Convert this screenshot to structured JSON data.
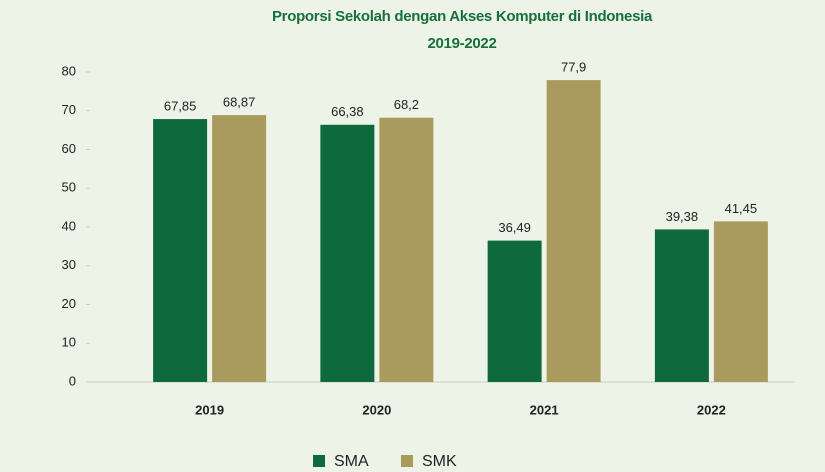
{
  "chart_data": {
    "type": "bar",
    "title": "Proporsi Sekolah dengan Akses Komputer di Indonesia",
    "subtitle": "2019-2022",
    "categories": [
      "2019",
      "2020",
      "2021",
      "2022"
    ],
    "series": [
      {
        "name": "SMA",
        "color": "#0e6a3c",
        "values": [
          67.85,
          66.38,
          36.49,
          39.38
        ],
        "value_labels": [
          "67,85",
          "66,38",
          "36,49",
          "39,38"
        ]
      },
      {
        "name": "SMK",
        "color": "#a99a5d",
        "values": [
          68.87,
          68.2,
          77.9,
          41.45
        ],
        "value_labels": [
          "68,87",
          "68,2",
          "77,9",
          "41,45"
        ]
      }
    ],
    "ylim": [
      0,
      80
    ],
    "yticks": [
      0,
      10,
      20,
      30,
      40,
      50,
      60,
      70,
      80
    ],
    "grid": false,
    "legend": "bottom"
  }
}
